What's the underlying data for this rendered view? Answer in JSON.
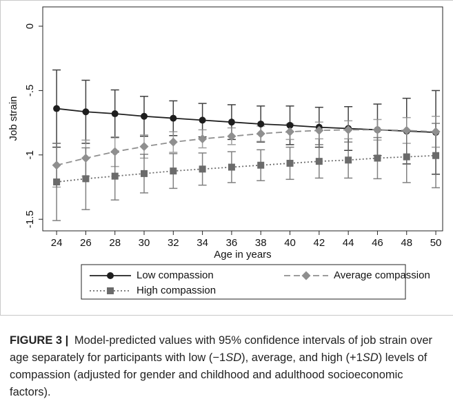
{
  "chart_data": {
    "type": "line",
    "xlabel": "Age in years",
    "ylabel": "Job strain",
    "x": [
      24,
      26,
      28,
      30,
      32,
      34,
      36,
      38,
      40,
      42,
      44,
      46,
      48,
      50
    ],
    "xlim": [
      23.05,
      50.47
    ],
    "xticks": [
      24,
      26,
      28,
      30,
      32,
      34,
      36,
      38,
      40,
      42,
      44,
      46,
      48,
      50
    ],
    "ylim": [
      -1.59,
      0.15
    ],
    "yticks": [
      0,
      {
        "value": -0.5,
        "label": "-.5"
      },
      -1,
      -1.5
    ],
    "grid": false,
    "legend": "bottom",
    "series": [
      {
        "name": "Low compassion",
        "color": "#1e1e1e",
        "marker": "circle",
        "line_style": "solid",
        "values": [
          -0.64,
          -0.665,
          -0.68,
          -0.7,
          -0.715,
          -0.73,
          -0.745,
          -0.76,
          -0.77,
          -0.785,
          -0.795,
          -0.805,
          -0.815,
          -0.825
        ],
        "errors": [
          0.3,
          0.245,
          0.185,
          0.155,
          0.135,
          0.13,
          0.135,
          0.14,
          0.15,
          0.155,
          0.17,
          0.2,
          0.255,
          0.325
        ]
      },
      {
        "name": "Average compassion",
        "color": "#8f8f8f",
        "marker": "diamond",
        "line_style": "dashed",
        "values": [
          -1.08,
          -1.025,
          -0.975,
          -0.935,
          -0.9,
          -0.875,
          -0.855,
          -0.835,
          -0.82,
          -0.81,
          -0.805,
          -0.805,
          -0.81,
          -0.82
        ],
        "errors": [
          0.17,
          0.14,
          0.115,
          0.09,
          0.08,
          0.07,
          0.065,
          0.06,
          0.06,
          0.065,
          0.07,
          0.08,
          0.1,
          0.12
        ]
      },
      {
        "name": "High compassion",
        "color": "#6b6b6b",
        "marker": "square",
        "line_style": "dotted",
        "values": [
          -1.21,
          -1.185,
          -1.165,
          -1.145,
          -1.125,
          -1.11,
          -1.095,
          -1.08,
          -1.065,
          -1.05,
          -1.04,
          -1.025,
          -1.015,
          -1.005
        ],
        "errors": [
          0.3,
          0.24,
          0.185,
          0.15,
          0.135,
          0.125,
          0.12,
          0.12,
          0.125,
          0.13,
          0.14,
          0.16,
          0.2,
          0.25
        ]
      }
    ]
  },
  "caption": {
    "label": "FIGURE 3 |",
    "parts": [
      "Model-predicted values with 95% confidence intervals of job strain over age separately for participants with low (−1",
      "SD",
      "), average, and high (+1",
      "SD",
      ") levels of compassion (adjusted for gender and childhood and adulthood socioeconomic factors)."
    ]
  }
}
